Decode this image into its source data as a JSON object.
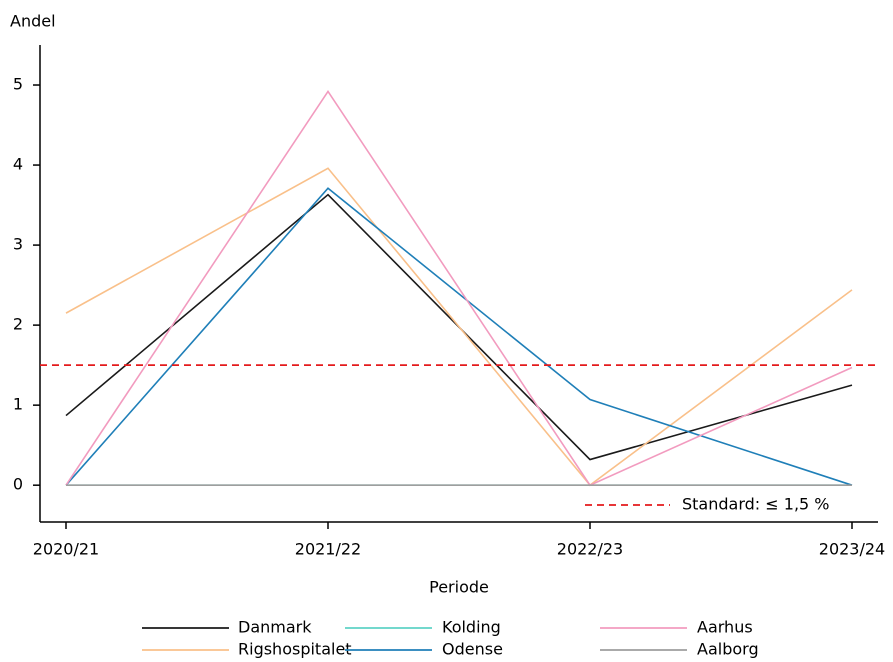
{
  "chart_data": {
    "type": "line",
    "y_label": "Andel",
    "x_label": "Periode",
    "categories": [
      "2020/21",
      "2021/22",
      "2022/23",
      "2023/24"
    ],
    "series": [
      {
        "name": "Danmark",
        "color": "#1a1a1a",
        "values": [
          0.87,
          3.63,
          0.32,
          1.25
        ]
      },
      {
        "name": "Rigshospitalet",
        "color": "#f9c08a",
        "values": [
          2.15,
          3.96,
          0,
          2.44
        ]
      },
      {
        "name": "Kolding",
        "color": "#5fd3c6",
        "values": [
          0,
          0,
          0,
          0
        ]
      },
      {
        "name": "Odense",
        "color": "#1f7fb8",
        "values": [
          0,
          3.71,
          1.07,
          0
        ]
      },
      {
        "name": "Aarhus",
        "color": "#f29bbf",
        "values": [
          0,
          4.92,
          0,
          1.47
        ]
      },
      {
        "name": "Aalborg",
        "color": "#9e9e9e",
        "values": [
          0,
          0,
          0,
          0
        ]
      }
    ],
    "reference_line": {
      "value": 1.5,
      "label": "Standard: ≤ 1,5 %",
      "color": "#e41a1c"
    },
    "ylim": [
      -0.46,
      5.5
    ],
    "yticks": [
      0,
      1,
      2,
      3,
      4,
      5
    ],
    "grid": false
  }
}
